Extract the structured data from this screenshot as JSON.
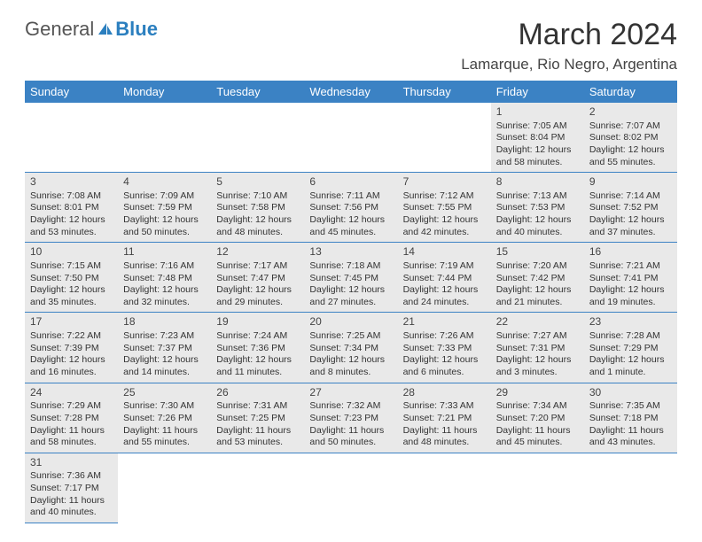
{
  "logo": {
    "word1": "General",
    "word2": "Blue"
  },
  "title": "March 2024",
  "location": "Lamarque, Rio Negro, Argentina",
  "colors": {
    "header_bg": "#3b82c4",
    "header_text": "#ffffff",
    "cell_bg": "#e9e9e9",
    "border": "#3b82c4",
    "logo_blue": "#2b7fbf",
    "text": "#333333"
  },
  "dayHeaders": [
    "Sunday",
    "Monday",
    "Tuesday",
    "Wednesday",
    "Thursday",
    "Friday",
    "Saturday"
  ],
  "weeks": [
    [
      null,
      null,
      null,
      null,
      null,
      {
        "n": "1",
        "sr": "Sunrise: 7:05 AM",
        "ss": "Sunset: 8:04 PM",
        "d1": "Daylight: 12 hours",
        "d2": "and 58 minutes."
      },
      {
        "n": "2",
        "sr": "Sunrise: 7:07 AM",
        "ss": "Sunset: 8:02 PM",
        "d1": "Daylight: 12 hours",
        "d2": "and 55 minutes."
      }
    ],
    [
      {
        "n": "3",
        "sr": "Sunrise: 7:08 AM",
        "ss": "Sunset: 8:01 PM",
        "d1": "Daylight: 12 hours",
        "d2": "and 53 minutes."
      },
      {
        "n": "4",
        "sr": "Sunrise: 7:09 AM",
        "ss": "Sunset: 7:59 PM",
        "d1": "Daylight: 12 hours",
        "d2": "and 50 minutes."
      },
      {
        "n": "5",
        "sr": "Sunrise: 7:10 AM",
        "ss": "Sunset: 7:58 PM",
        "d1": "Daylight: 12 hours",
        "d2": "and 48 minutes."
      },
      {
        "n": "6",
        "sr": "Sunrise: 7:11 AM",
        "ss": "Sunset: 7:56 PM",
        "d1": "Daylight: 12 hours",
        "d2": "and 45 minutes."
      },
      {
        "n": "7",
        "sr": "Sunrise: 7:12 AM",
        "ss": "Sunset: 7:55 PM",
        "d1": "Daylight: 12 hours",
        "d2": "and 42 minutes."
      },
      {
        "n": "8",
        "sr": "Sunrise: 7:13 AM",
        "ss": "Sunset: 7:53 PM",
        "d1": "Daylight: 12 hours",
        "d2": "and 40 minutes."
      },
      {
        "n": "9",
        "sr": "Sunrise: 7:14 AM",
        "ss": "Sunset: 7:52 PM",
        "d1": "Daylight: 12 hours",
        "d2": "and 37 minutes."
      }
    ],
    [
      {
        "n": "10",
        "sr": "Sunrise: 7:15 AM",
        "ss": "Sunset: 7:50 PM",
        "d1": "Daylight: 12 hours",
        "d2": "and 35 minutes."
      },
      {
        "n": "11",
        "sr": "Sunrise: 7:16 AM",
        "ss": "Sunset: 7:48 PM",
        "d1": "Daylight: 12 hours",
        "d2": "and 32 minutes."
      },
      {
        "n": "12",
        "sr": "Sunrise: 7:17 AM",
        "ss": "Sunset: 7:47 PM",
        "d1": "Daylight: 12 hours",
        "d2": "and 29 minutes."
      },
      {
        "n": "13",
        "sr": "Sunrise: 7:18 AM",
        "ss": "Sunset: 7:45 PM",
        "d1": "Daylight: 12 hours",
        "d2": "and 27 minutes."
      },
      {
        "n": "14",
        "sr": "Sunrise: 7:19 AM",
        "ss": "Sunset: 7:44 PM",
        "d1": "Daylight: 12 hours",
        "d2": "and 24 minutes."
      },
      {
        "n": "15",
        "sr": "Sunrise: 7:20 AM",
        "ss": "Sunset: 7:42 PM",
        "d1": "Daylight: 12 hours",
        "d2": "and 21 minutes."
      },
      {
        "n": "16",
        "sr": "Sunrise: 7:21 AM",
        "ss": "Sunset: 7:41 PM",
        "d1": "Daylight: 12 hours",
        "d2": "and 19 minutes."
      }
    ],
    [
      {
        "n": "17",
        "sr": "Sunrise: 7:22 AM",
        "ss": "Sunset: 7:39 PM",
        "d1": "Daylight: 12 hours",
        "d2": "and 16 minutes."
      },
      {
        "n": "18",
        "sr": "Sunrise: 7:23 AM",
        "ss": "Sunset: 7:37 PM",
        "d1": "Daylight: 12 hours",
        "d2": "and 14 minutes."
      },
      {
        "n": "19",
        "sr": "Sunrise: 7:24 AM",
        "ss": "Sunset: 7:36 PM",
        "d1": "Daylight: 12 hours",
        "d2": "and 11 minutes."
      },
      {
        "n": "20",
        "sr": "Sunrise: 7:25 AM",
        "ss": "Sunset: 7:34 PM",
        "d1": "Daylight: 12 hours",
        "d2": "and 8 minutes."
      },
      {
        "n": "21",
        "sr": "Sunrise: 7:26 AM",
        "ss": "Sunset: 7:33 PM",
        "d1": "Daylight: 12 hours",
        "d2": "and 6 minutes."
      },
      {
        "n": "22",
        "sr": "Sunrise: 7:27 AM",
        "ss": "Sunset: 7:31 PM",
        "d1": "Daylight: 12 hours",
        "d2": "and 3 minutes."
      },
      {
        "n": "23",
        "sr": "Sunrise: 7:28 AM",
        "ss": "Sunset: 7:29 PM",
        "d1": "Daylight: 12 hours",
        "d2": "and 1 minute."
      }
    ],
    [
      {
        "n": "24",
        "sr": "Sunrise: 7:29 AM",
        "ss": "Sunset: 7:28 PM",
        "d1": "Daylight: 11 hours",
        "d2": "and 58 minutes."
      },
      {
        "n": "25",
        "sr": "Sunrise: 7:30 AM",
        "ss": "Sunset: 7:26 PM",
        "d1": "Daylight: 11 hours",
        "d2": "and 55 minutes."
      },
      {
        "n": "26",
        "sr": "Sunrise: 7:31 AM",
        "ss": "Sunset: 7:25 PM",
        "d1": "Daylight: 11 hours",
        "d2": "and 53 minutes."
      },
      {
        "n": "27",
        "sr": "Sunrise: 7:32 AM",
        "ss": "Sunset: 7:23 PM",
        "d1": "Daylight: 11 hours",
        "d2": "and 50 minutes."
      },
      {
        "n": "28",
        "sr": "Sunrise: 7:33 AM",
        "ss": "Sunset: 7:21 PM",
        "d1": "Daylight: 11 hours",
        "d2": "and 48 minutes."
      },
      {
        "n": "29",
        "sr": "Sunrise: 7:34 AM",
        "ss": "Sunset: 7:20 PM",
        "d1": "Daylight: 11 hours",
        "d2": "and 45 minutes."
      },
      {
        "n": "30",
        "sr": "Sunrise: 7:35 AM",
        "ss": "Sunset: 7:18 PM",
        "d1": "Daylight: 11 hours",
        "d2": "and 43 minutes."
      }
    ],
    [
      {
        "n": "31",
        "sr": "Sunrise: 7:36 AM",
        "ss": "Sunset: 7:17 PM",
        "d1": "Daylight: 11 hours",
        "d2": "and 40 minutes."
      },
      null,
      null,
      null,
      null,
      null,
      null
    ]
  ]
}
